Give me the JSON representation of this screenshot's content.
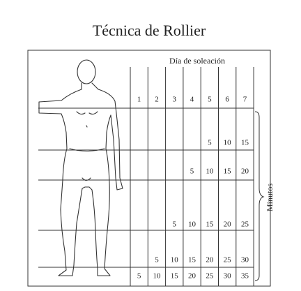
{
  "title": "Técnica de Rollier",
  "table": {
    "header": "Día de soleación",
    "columns": [
      1,
      2,
      3,
      4,
      5,
      6,
      7
    ],
    "rows": [
      [
        null,
        null,
        null,
        null,
        5,
        10,
        15
      ],
      [
        null,
        null,
        null,
        5,
        10,
        15,
        20
      ],
      [
        null,
        null,
        5,
        10,
        15,
        20,
        25
      ],
      [
        null,
        5,
        10,
        15,
        20,
        25,
        30
      ],
      [
        5,
        10,
        15,
        20,
        25,
        30,
        35
      ]
    ],
    "unit": "Minutos"
  }
}
